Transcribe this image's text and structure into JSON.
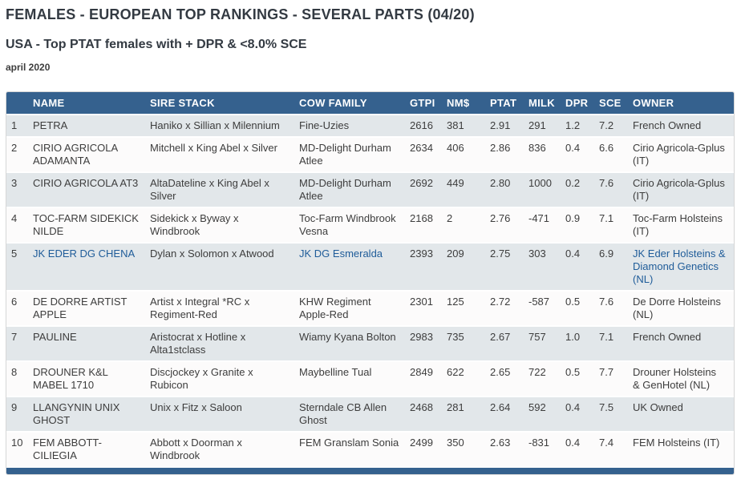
{
  "page": {
    "title": "FEMALES - EUROPEAN TOP RANKINGS - SEVERAL PARTS (04/20)",
    "subtitle": "USA - Top PTAT females with + DPR & <8.0% SCE",
    "date_label": "april 2020"
  },
  "colors": {
    "header_bg": "#35618e",
    "row_stripe": "#e2e7ea",
    "link_blue": "#1f5c99",
    "body_text": "#3d3d3d"
  },
  "table": {
    "headers": {
      "rank": "",
      "name": "NAME",
      "sire_stack": "SIRE STACK",
      "cow_family": "COW FAMILY",
      "gtpi": "GTPI",
      "nm": "NM$",
      "ptat": "PTAT",
      "milk": "MILK",
      "dpr": "DPR",
      "sce": "SCE",
      "owner": "OWNER"
    },
    "rows": [
      {
        "rank": "1",
        "name": "PETRA",
        "sire_stack": "Haniko x Sillian x Milennium",
        "cow_family": "Fine-Uzies",
        "gtpi": "2616",
        "nm": "381",
        "ptat": "2.91",
        "milk": "291",
        "dpr": "1.2",
        "sce": "7.2",
        "owner": "French Owned"
      },
      {
        "rank": "2",
        "name": "CIRIO AGRICOLA ADAMANTA",
        "sire_stack": "Mitchell x King Abel x Silver",
        "cow_family": "MD-Delight Durham Atlee",
        "gtpi": "2634",
        "nm": "406",
        "ptat": "2.86",
        "milk": "836",
        "dpr": "0.4",
        "sce": "6.6",
        "owner": "Cirio Agricola-Gplus (IT)"
      },
      {
        "rank": "3",
        "name": "CIRIO AGRICOLA AT3",
        "sire_stack": "AltaDateline x King Abel x Silver",
        "cow_family": "MD-Delight Durham Atlee",
        "gtpi": "2692",
        "nm": "449",
        "ptat": "2.80",
        "milk": "1000",
        "dpr": "0.2",
        "sce": "7.6",
        "owner": "Cirio Agricola-Gplus (IT)"
      },
      {
        "rank": "4",
        "name": "TOC-FARM SIDEKICK NILDE",
        "sire_stack": "Sidekick x Byway x Windbrook",
        "cow_family": "Toc-Farm Windbrook Vesna",
        "gtpi": "2168",
        "nm": "2",
        "ptat": "2.76",
        "milk": "-471",
        "dpr": "0.9",
        "sce": "7.1",
        "owner": "Toc-Farm Holsteins (IT)"
      },
      {
        "rank": "5",
        "name": "JK EDER DG CHENA",
        "sire_stack": "Dylan x Solomon x Atwood",
        "cow_family": "JK DG Esmeralda",
        "gtpi": "2393",
        "nm": "209",
        "ptat": "2.75",
        "milk": "303",
        "dpr": "0.4",
        "sce": "6.9",
        "owner": "JK Eder Holsteins & Diamond Genetics (NL)"
      },
      {
        "rank": "6",
        "name": "DE DORRE ARTIST APPLE",
        "sire_stack": "Artist x Integral *RC x Regiment-Red",
        "cow_family": "KHW Regiment Apple-Red",
        "gtpi": "2301",
        "nm": "125",
        "ptat": "2.72",
        "milk": "-587",
        "dpr": "0.5",
        "sce": "7.6",
        "owner": "De Dorre Holsteins (NL)"
      },
      {
        "rank": "7",
        "name": "PAULINE",
        "sire_stack": "Aristocrat x Hotline x Alta1stclass",
        "cow_family": "Wiamy Kyana Bolton",
        "gtpi": "2983",
        "nm": "735",
        "ptat": "2.67",
        "milk": "757",
        "dpr": "1.0",
        "sce": "7.1",
        "owner": "French Owned"
      },
      {
        "rank": "8",
        "name": "DROUNER K&L MABEL 1710",
        "sire_stack": "Discjockey x Granite x Rubicon",
        "cow_family": "Maybelline Tual",
        "gtpi": "2849",
        "nm": "622",
        "ptat": "2.65",
        "milk": "722",
        "dpr": "0.5",
        "sce": "7.7",
        "owner": "Drouner Holsteins & GenHotel (NL)"
      },
      {
        "rank": "9",
        "name": "LLANGYNIN UNIX GHOST",
        "sire_stack": "Unix x Fitz x Saloon",
        "cow_family": "Sterndale CB Allen Ghost",
        "gtpi": "2468",
        "nm": "281",
        "ptat": "2.64",
        "milk": "592",
        "dpr": "0.4",
        "sce": "7.5",
        "owner": "UK Owned"
      },
      {
        "rank": "10",
        "name": "FEM ABBOTT-CILIEGIA",
        "sire_stack": "Abbott x Doorman x Windbrook",
        "cow_family": "FEM Granslam Sonia",
        "gtpi": "2499",
        "nm": "350",
        "ptat": "2.63",
        "milk": "-831",
        "dpr": "0.4",
        "sce": "7.4",
        "owner": "FEM Holsteins (IT)"
      }
    ]
  }
}
